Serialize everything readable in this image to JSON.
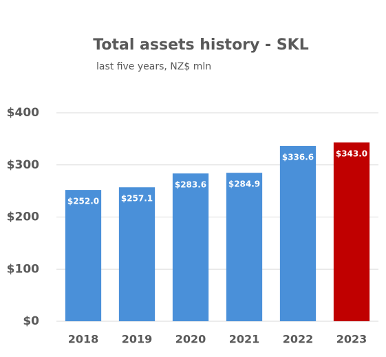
{
  "chart_data": {
    "type": "bar",
    "title": "Total assets history - SKL",
    "subtitle": "last five years, NZ$ mln",
    "categories": [
      "2018",
      "2019",
      "2020",
      "2021",
      "2022",
      "2023"
    ],
    "values": [
      252.0,
      257.1,
      283.6,
      284.9,
      336.6,
      343.0
    ],
    "value_labels": [
      "$252.0",
      "$257.1",
      "$283.6",
      "$284.9",
      "$336.6",
      "$343.0"
    ],
    "colors": [
      "#4a90d9",
      "#4a90d9",
      "#4a90d9",
      "#4a90d9",
      "#4a90d9",
      "#c00000"
    ],
    "ylim": [
      0,
      400
    ],
    "yticks": [
      {
        "value": 0,
        "label": "$0"
      },
      {
        "value": 100,
        "label": "$100"
      },
      {
        "value": 200,
        "label": "$200"
      },
      {
        "value": 300,
        "label": "$300"
      },
      {
        "value": 400,
        "label": "$400"
      }
    ],
    "grid": true
  }
}
